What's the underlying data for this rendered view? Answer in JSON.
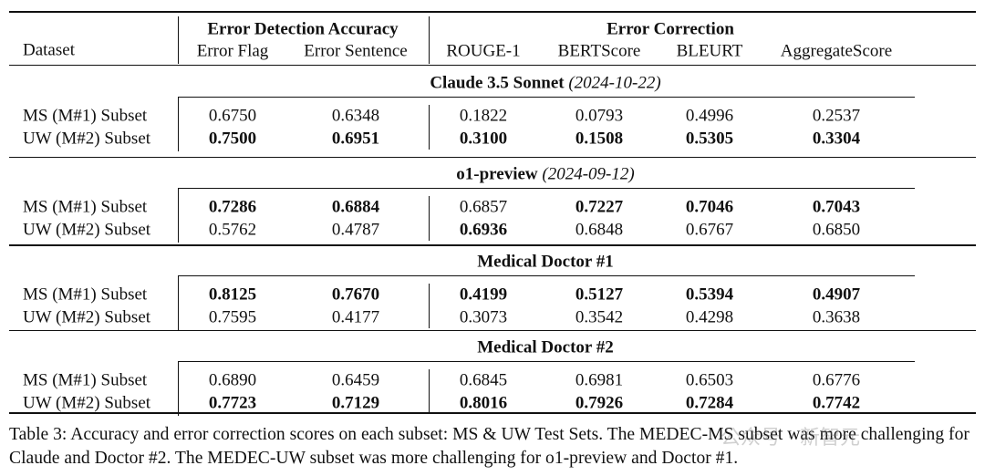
{
  "table": {
    "headers": {
      "dataset": "Dataset",
      "groups": [
        "Error Detection Accuracy",
        "Error Correction"
      ],
      "columns": [
        "Error Flag",
        "Error Sentence",
        "ROUGE-1",
        "BERTScore",
        "BLEURT",
        "AggregateScore"
      ]
    },
    "sections": [
      {
        "model": "Claude 3.5 Sonnet",
        "date": "(2024-10-22)",
        "rows": [
          {
            "dataset": "MS (M#1) Subset",
            "values": [
              "0.6750",
              "0.6348",
              "0.1822",
              "0.0793",
              "0.4996",
              "0.2537"
            ],
            "bold": [
              false,
              false,
              false,
              false,
              false,
              false
            ]
          },
          {
            "dataset": "UW (M#2) Subset",
            "values": [
              "0.7500",
              "0.6951",
              "0.3100",
              "0.1508",
              "0.5305",
              "0.3304"
            ],
            "bold": [
              true,
              true,
              true,
              true,
              true,
              true
            ]
          }
        ]
      },
      {
        "model": "o1-preview",
        "date": "(2024-09-12)",
        "rows": [
          {
            "dataset": "MS (M#1) Subset",
            "values": [
              "0.7286",
              "0.6884",
              "0.6857",
              "0.7227",
              "0.7046",
              "0.7043"
            ],
            "bold": [
              true,
              true,
              false,
              true,
              true,
              true
            ]
          },
          {
            "dataset": "UW (M#2) Subset",
            "values": [
              "0.5762",
              "0.4787",
              "0.6936",
              "0.6848",
              "0.6767",
              "0.6850"
            ],
            "bold": [
              false,
              false,
              true,
              false,
              false,
              false
            ]
          }
        ]
      },
      {
        "model": "Medical Doctor #1",
        "rows": [
          {
            "dataset": "MS (M#1) Subset",
            "values": [
              "0.8125",
              "0.7670",
              "0.4199",
              "0.5127",
              "0.5394",
              "0.4907"
            ],
            "bold": [
              true,
              true,
              true,
              true,
              true,
              true
            ]
          },
          {
            "dataset": "UW (M#2) Subset",
            "values": [
              "0.7595",
              "0.4177",
              "0.3073",
              "0.3542",
              "0.4298",
              "0.3638"
            ],
            "bold": [
              false,
              false,
              false,
              false,
              false,
              false
            ]
          }
        ]
      },
      {
        "model": "Medical Doctor #2",
        "rows": [
          {
            "dataset": "MS (M#1) Subset",
            "values": [
              "0.6890",
              "0.6459",
              "0.6845",
              "0.6981",
              "0.6503",
              "0.6776"
            ],
            "bold": [
              false,
              false,
              false,
              false,
              false,
              false
            ]
          },
          {
            "dataset": "UW (M#2) Subset",
            "values": [
              "0.7723",
              "0.7129",
              "0.8016",
              "0.7926",
              "0.7284",
              "0.7742"
            ],
            "bold": [
              true,
              true,
              true,
              true,
              true,
              true
            ]
          }
        ]
      }
    ]
  },
  "caption": "Table 3: Accuracy and error correction scores on each subset: MS & UW Test Sets. The MEDEC-MS subset was more challenging for Claude and Doctor #2. The MEDEC-UW subset was more challenging for o1-preview and Doctor #1.",
  "watermark": "公众号 · 新智元"
}
